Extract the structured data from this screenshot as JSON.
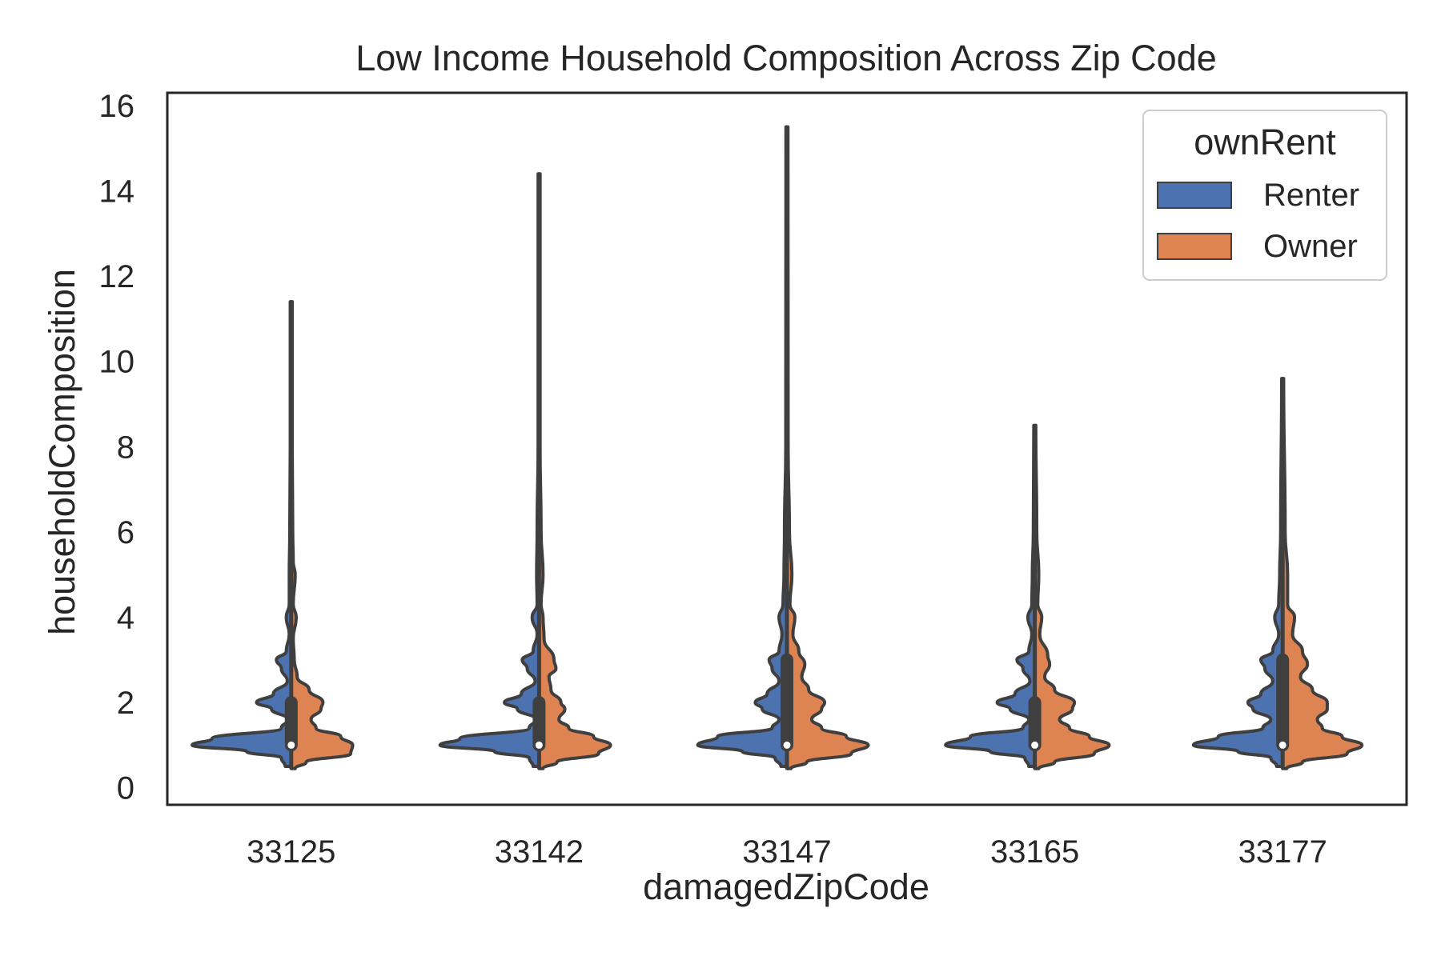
{
  "chart_data": {
    "type": "violin",
    "title": "Low Income Household Composition Across Zip Code",
    "xlabel": "damagedZipCode",
    "ylabel": "householdComposition",
    "categories": [
      "33125",
      "33142",
      "33147",
      "33165",
      "33177"
    ],
    "ylim": [
      -0.4,
      16.3
    ],
    "yticks": [
      0,
      2,
      4,
      6,
      8,
      10,
      12,
      14,
      16
    ],
    "grid": false,
    "split": true,
    "hue": "ownRent",
    "legend": {
      "title": "ownRent",
      "position": "top-right",
      "entries": [
        {
          "label": "Renter",
          "color": "#4c72b0"
        },
        {
          "label": "Owner",
          "color": "#dd8452"
        }
      ]
    },
    "series": [
      {
        "name": "Renter",
        "color": "#4c72b0",
        "side": "left",
        "groups": [
          {
            "category": "33125",
            "min": 0.5,
            "max": 11.4,
            "density": [
              [
                0.5,
                0.06
              ],
              [
                0.7,
                0.1
              ],
              [
                0.85,
                0.45
              ],
              [
                1.0,
                1.0
              ],
              [
                1.15,
                0.8
              ],
              [
                1.4,
                0.1
              ],
              [
                1.6,
                0.03
              ],
              [
                1.85,
                0.2
              ],
              [
                2.0,
                0.35
              ],
              [
                2.2,
                0.18
              ],
              [
                2.5,
                0.04
              ],
              [
                2.8,
                0.1
              ],
              [
                3.0,
                0.15
              ],
              [
                3.2,
                0.05
              ],
              [
                3.6,
                0.02
              ],
              [
                4.0,
                0.05
              ],
              [
                4.3,
                0.02
              ],
              [
                5.0,
                0.02
              ],
              [
                6.0,
                0.015
              ],
              [
                8.0,
                0.01
              ],
              [
                11.4,
                0.01
              ]
            ]
          },
          {
            "category": "33142",
            "min": 0.5,
            "max": 14.4,
            "density": [
              [
                0.5,
                0.06
              ],
              [
                0.7,
                0.1
              ],
              [
                0.85,
                0.45
              ],
              [
                1.0,
                1.0
              ],
              [
                1.15,
                0.8
              ],
              [
                1.4,
                0.1
              ],
              [
                1.6,
                0.03
              ],
              [
                1.85,
                0.22
              ],
              [
                2.0,
                0.35
              ],
              [
                2.2,
                0.18
              ],
              [
                2.5,
                0.04
              ],
              [
                2.8,
                0.12
              ],
              [
                3.0,
                0.17
              ],
              [
                3.2,
                0.06
              ],
              [
                3.6,
                0.02
              ],
              [
                4.0,
                0.07
              ],
              [
                4.3,
                0.02
              ],
              [
                5.0,
                0.025
              ],
              [
                6.0,
                0.02
              ],
              [
                8.0,
                0.01
              ],
              [
                14.4,
                0.01
              ]
            ]
          },
          {
            "category": "33147",
            "min": 0.5,
            "max": 15.5,
            "density": [
              [
                0.5,
                0.06
              ],
              [
                0.7,
                0.12
              ],
              [
                0.85,
                0.45
              ],
              [
                1.0,
                0.9
              ],
              [
                1.2,
                0.7
              ],
              [
                1.4,
                0.15
              ],
              [
                1.6,
                0.08
              ],
              [
                1.85,
                0.25
              ],
              [
                2.0,
                0.32
              ],
              [
                2.2,
                0.2
              ],
              [
                2.5,
                0.08
              ],
              [
                2.8,
                0.15
              ],
              [
                3.0,
                0.18
              ],
              [
                3.2,
                0.08
              ],
              [
                3.6,
                0.05
              ],
              [
                4.0,
                0.08
              ],
              [
                4.3,
                0.04
              ],
              [
                5.0,
                0.03
              ],
              [
                6.0,
                0.025
              ],
              [
                8.0,
                0.012
              ],
              [
                15.5,
                0.01
              ]
            ]
          },
          {
            "category": "33165",
            "min": 0.5,
            "max": 8.5,
            "density": [
              [
                0.5,
                0.06
              ],
              [
                0.7,
                0.1
              ],
              [
                0.85,
                0.45
              ],
              [
                1.0,
                0.9
              ],
              [
                1.2,
                0.65
              ],
              [
                1.4,
                0.12
              ],
              [
                1.6,
                0.06
              ],
              [
                1.85,
                0.25
              ],
              [
                2.0,
                0.38
              ],
              [
                2.2,
                0.2
              ],
              [
                2.5,
                0.05
              ],
              [
                2.8,
                0.12
              ],
              [
                3.0,
                0.18
              ],
              [
                3.2,
                0.06
              ],
              [
                3.6,
                0.03
              ],
              [
                4.0,
                0.07
              ],
              [
                4.3,
                0.03
              ],
              [
                5.0,
                0.025
              ],
              [
                6.0,
                0.015
              ],
              [
                8.5,
                0.01
              ]
            ]
          },
          {
            "category": "33177",
            "min": 0.5,
            "max": 9.6,
            "density": [
              [
                0.5,
                0.06
              ],
              [
                0.7,
                0.12
              ],
              [
                0.85,
                0.45
              ],
              [
                1.0,
                0.9
              ],
              [
                1.2,
                0.65
              ],
              [
                1.4,
                0.2
              ],
              [
                1.6,
                0.12
              ],
              [
                1.85,
                0.3
              ],
              [
                2.0,
                0.35
              ],
              [
                2.2,
                0.22
              ],
              [
                2.5,
                0.1
              ],
              [
                2.8,
                0.18
              ],
              [
                3.0,
                0.22
              ],
              [
                3.2,
                0.1
              ],
              [
                3.6,
                0.04
              ],
              [
                4.0,
                0.08
              ],
              [
                4.3,
                0.04
              ],
              [
                5.0,
                0.03
              ],
              [
                6.0,
                0.02
              ],
              [
                9.6,
                0.01
              ]
            ]
          }
        ]
      },
      {
        "name": "Owner",
        "color": "#dd8452",
        "side": "right",
        "groups": [
          {
            "category": "33125",
            "min": 0.45,
            "max": 11.4,
            "density": [
              [
                0.45,
                0.04
              ],
              [
                0.6,
                0.15
              ],
              [
                0.8,
                0.6
              ],
              [
                1.0,
                0.62
              ],
              [
                1.2,
                0.5
              ],
              [
                1.4,
                0.25
              ],
              [
                1.6,
                0.2
              ],
              [
                1.85,
                0.3
              ],
              [
                2.0,
                0.32
              ],
              [
                2.3,
                0.18
              ],
              [
                2.6,
                0.06
              ],
              [
                3.0,
                0.03
              ],
              [
                3.5,
                0.02
              ],
              [
                4.0,
                0.05
              ],
              [
                4.3,
                0.02
              ],
              [
                5.0,
                0.04
              ],
              [
                5.3,
                0.02
              ],
              [
                6.0,
                0.015
              ],
              [
                8.0,
                0.01
              ],
              [
                11.4,
                0.01
              ]
            ]
          },
          {
            "category": "33142",
            "min": 0.45,
            "max": 14.4,
            "density": [
              [
                0.45,
                0.04
              ],
              [
                0.6,
                0.18
              ],
              [
                0.8,
                0.6
              ],
              [
                1.0,
                0.72
              ],
              [
                1.2,
                0.55
              ],
              [
                1.4,
                0.3
              ],
              [
                1.6,
                0.2
              ],
              [
                1.85,
                0.26
              ],
              [
                2.0,
                0.22
              ],
              [
                2.3,
                0.12
              ],
              [
                2.6,
                0.1
              ],
              [
                2.8,
                0.17
              ],
              [
                3.0,
                0.15
              ],
              [
                3.5,
                0.05
              ],
              [
                4.0,
                0.04
              ],
              [
                4.3,
                0.02
              ],
              [
                5.0,
                0.04
              ],
              [
                6.0,
                0.02
              ],
              [
                8.0,
                0.01
              ],
              [
                14.4,
                0.01
              ]
            ]
          },
          {
            "category": "33147",
            "min": 0.45,
            "max": 15.5,
            "density": [
              [
                0.45,
                0.04
              ],
              [
                0.6,
                0.2
              ],
              [
                0.8,
                0.65
              ],
              [
                1.0,
                0.82
              ],
              [
                1.2,
                0.6
              ],
              [
                1.4,
                0.35
              ],
              [
                1.6,
                0.25
              ],
              [
                1.85,
                0.35
              ],
              [
                2.0,
                0.38
              ],
              [
                2.3,
                0.22
              ],
              [
                2.6,
                0.15
              ],
              [
                2.9,
                0.18
              ],
              [
                3.2,
                0.12
              ],
              [
                3.6,
                0.06
              ],
              [
                4.0,
                0.08
              ],
              [
                4.3,
                0.03
              ],
              [
                5.0,
                0.05
              ],
              [
                6.0,
                0.025
              ],
              [
                8.0,
                0.012
              ],
              [
                15.5,
                0.01
              ]
            ]
          },
          {
            "category": "33165",
            "min": 0.45,
            "max": 8.5,
            "density": [
              [
                0.45,
                0.04
              ],
              [
                0.6,
                0.2
              ],
              [
                0.8,
                0.6
              ],
              [
                1.0,
                0.75
              ],
              [
                1.2,
                0.55
              ],
              [
                1.4,
                0.35
              ],
              [
                1.6,
                0.25
              ],
              [
                1.85,
                0.38
              ],
              [
                2.0,
                0.4
              ],
              [
                2.3,
                0.2
              ],
              [
                2.6,
                0.1
              ],
              [
                2.9,
                0.15
              ],
              [
                3.1,
                0.13
              ],
              [
                3.6,
                0.05
              ],
              [
                4.0,
                0.07
              ],
              [
                4.3,
                0.03
              ],
              [
                5.0,
                0.04
              ],
              [
                6.0,
                0.02
              ],
              [
                8.5,
                0.01
              ]
            ]
          },
          {
            "category": "33177",
            "min": 0.45,
            "max": 9.6,
            "density": [
              [
                0.45,
                0.04
              ],
              [
                0.6,
                0.2
              ],
              [
                0.8,
                0.65
              ],
              [
                1.0,
                0.8
              ],
              [
                1.2,
                0.6
              ],
              [
                1.4,
                0.4
              ],
              [
                1.6,
                0.35
              ],
              [
                1.85,
                0.45
              ],
              [
                2.0,
                0.45
              ],
              [
                2.3,
                0.3
              ],
              [
                2.6,
                0.18
              ],
              [
                2.9,
                0.25
              ],
              [
                3.2,
                0.2
              ],
              [
                3.6,
                0.1
              ],
              [
                4.0,
                0.12
              ],
              [
                4.3,
                0.05
              ],
              [
                5.0,
                0.05
              ],
              [
                6.0,
                0.025
              ],
              [
                9.6,
                0.01
              ]
            ]
          }
        ]
      }
    ],
    "boxes": [
      {
        "category": "33125",
        "q1": 1,
        "median": 1,
        "q3": 2
      },
      {
        "category": "33142",
        "q1": 1,
        "median": 1,
        "q3": 2
      },
      {
        "category": "33147",
        "q1": 1,
        "median": 1,
        "q3": 3
      },
      {
        "category": "33165",
        "q1": 1,
        "median": 1,
        "q3": 2
      },
      {
        "category": "33177",
        "q1": 1,
        "median": 1,
        "q3": 3
      }
    ]
  }
}
